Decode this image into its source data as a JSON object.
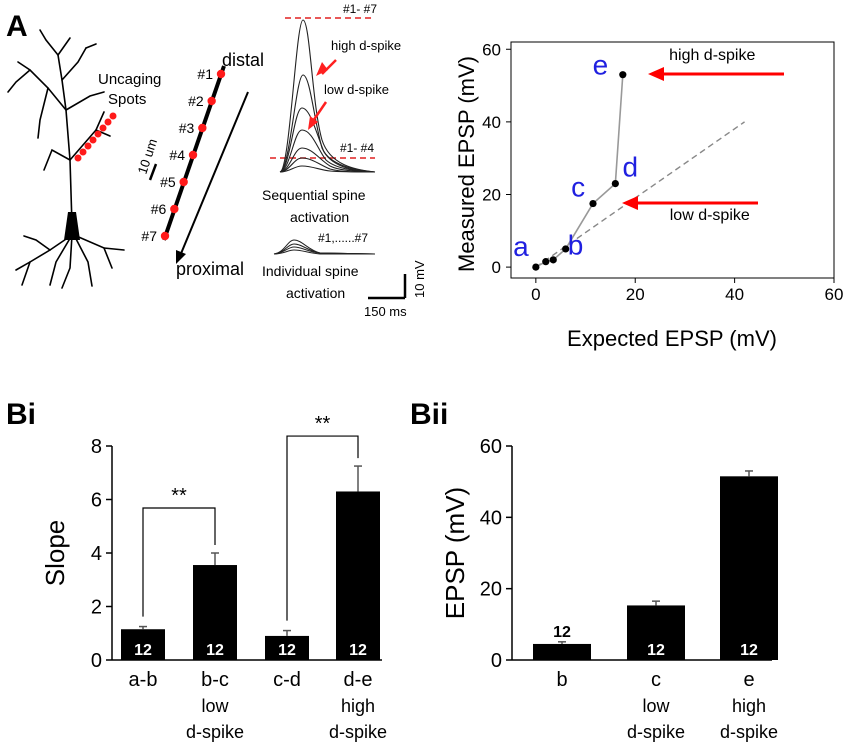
{
  "panel_labels": {
    "a": "A",
    "bi": "Bi",
    "bii": "Bii"
  },
  "schematic": {
    "uncaging": "Uncaging",
    "spots": "Spots",
    "scale": "10 um",
    "distal": "distal",
    "proximal": "proximal",
    "spines": [
      "#1",
      "#2",
      "#3",
      "#4",
      "#5",
      "#6",
      "#7"
    ]
  },
  "traces": {
    "top_label": "#1- #7",
    "high_label": "high d-spike",
    "low_label": "low d-spike",
    "mid_label": "#1- #4",
    "seq_line1": "Sequential spine",
    "seq_line2": "activation",
    "ind_label": "#1,......#7",
    "ind_line1": "Individual spine",
    "ind_line2": "activation",
    "scale_v": "10 mV",
    "scale_t": "150 ms"
  },
  "chart_data": [
    {
      "type": "scatter",
      "title": "",
      "xlabel": "Expected EPSP (mV)",
      "ylabel": "Measured EPSP (mV)",
      "xlim": [
        -5,
        60
      ],
      "ylim": [
        -3,
        62
      ],
      "xticks": [
        "0",
        "20",
        "40",
        "60"
      ],
      "yticks": [
        "0",
        "20",
        "40",
        "60"
      ],
      "x": [
        0,
        2,
        3.5,
        6,
        11.5,
        16,
        17.5
      ],
      "y": [
        0,
        1.5,
        2,
        5,
        17.5,
        23,
        53
      ],
      "point_labels": [
        {
          "text": "a",
          "x": -3,
          "y": 3
        },
        {
          "text": "b",
          "x": 8,
          "y": 3.5
        },
        {
          "text": "c",
          "x": 8.5,
          "y": 19.5
        },
        {
          "text": "d",
          "x": 19,
          "y": 25
        },
        {
          "text": "e",
          "x": 13,
          "y": 53
        }
      ],
      "identity_line": {
        "from": [
          0,
          0
        ],
        "to": [
          42,
          40
        ]
      },
      "annotations": [
        {
          "text": "high d-spike",
          "x": 35.5,
          "y": 57
        },
        {
          "text": "low d-spike",
          "x": 35,
          "y": 13
        }
      ]
    },
    {
      "type": "bar",
      "title": "",
      "xlabel": "",
      "ylabel": "Slope",
      "ylim": [
        0,
        8
      ],
      "yticks": [
        "0",
        "2",
        "4",
        "6",
        "8"
      ],
      "categories": [
        "a-b",
        "b-c",
        "c-d",
        "d-e"
      ],
      "sublabels": [
        [
          "",
          ""
        ],
        [
          "low",
          "d-spike"
        ],
        [
          "",
          ""
        ],
        [
          "high",
          "d-spike"
        ]
      ],
      "values": [
        1.15,
        3.55,
        0.9,
        6.3
      ],
      "errors": [
        0.1,
        0.45,
        0.2,
        0.95
      ],
      "n": [
        "12",
        "12",
        "12",
        "12"
      ],
      "significance": [
        {
          "between": [
            0,
            1
          ],
          "label": "**"
        },
        {
          "between": [
            2,
            3
          ],
          "label": "**"
        }
      ]
    },
    {
      "type": "bar",
      "title": "",
      "xlabel": "",
      "ylabel": "EPSP (mV)",
      "ylim": [
        0,
        60
      ],
      "yticks": [
        "0",
        "20",
        "40",
        "60"
      ],
      "categories": [
        "b",
        "c",
        "e"
      ],
      "sublabels": [
        [
          "",
          ""
        ],
        [
          "low",
          "d-spike"
        ],
        [
          "high",
          "d-spike"
        ]
      ],
      "values": [
        4.5,
        15.3,
        51.5
      ],
      "errors": [
        0.6,
        1.2,
        1.5
      ],
      "n": [
        "12",
        "12",
        "12"
      ]
    }
  ],
  "colors": {
    "accent": "#ff0000",
    "point_label": "#2020e0",
    "bar": "#000000",
    "line": "#999999"
  }
}
